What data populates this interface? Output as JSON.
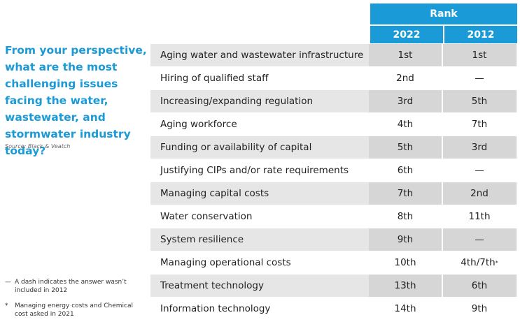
{
  "sidebar": {
    "question": "From your perspective, what are the most challenging issues facing the water, wastewater, and stormwater industry today?",
    "source": "Source: Black & Veatch",
    "footnotes": [
      {
        "symbol": "—",
        "text": "A dash indicates the answer wasn’t included in 2012"
      },
      {
        "symbol": "*",
        "text": "Managing energy costs and Chemical cost asked in 2021"
      }
    ]
  },
  "table": {
    "group_header": "Rank",
    "columns": [
      "2022",
      "2012"
    ],
    "rows": [
      {
        "issue": "Aging water and wastewater infrastructure",
        "rank_2022": "1st",
        "rank_2012": "1st"
      },
      {
        "issue": "Hiring of qualified staff",
        "rank_2022": "2nd",
        "rank_2012": "—"
      },
      {
        "issue": "Increasing/expanding regulation",
        "rank_2022": "3rd",
        "rank_2012": "5th"
      },
      {
        "issue": "Aging workforce",
        "rank_2022": "4th",
        "rank_2012": "7th"
      },
      {
        "issue": "Funding or availability of capital",
        "rank_2022": "5th",
        "rank_2012": "3rd"
      },
      {
        "issue": "Justifying CIPs and/or rate requirements",
        "rank_2022": "6th",
        "rank_2012": "—"
      },
      {
        "issue": "Managing capital costs",
        "rank_2022": "7th",
        "rank_2012": "2nd"
      },
      {
        "issue": "Water conservation",
        "rank_2022": "8th",
        "rank_2012": "11th"
      },
      {
        "issue": "System resilience",
        "rank_2022": "9th",
        "rank_2012": "—"
      },
      {
        "issue": "Managing operational costs",
        "rank_2022": "10th",
        "rank_2012": "4th/7th",
        "note": "*"
      },
      {
        "issue": "Treatment technology",
        "rank_2022": "13th",
        "rank_2012": "6th"
      },
      {
        "issue": "Information technology",
        "rank_2022": "14th",
        "rank_2012": "9th"
      }
    ]
  }
}
